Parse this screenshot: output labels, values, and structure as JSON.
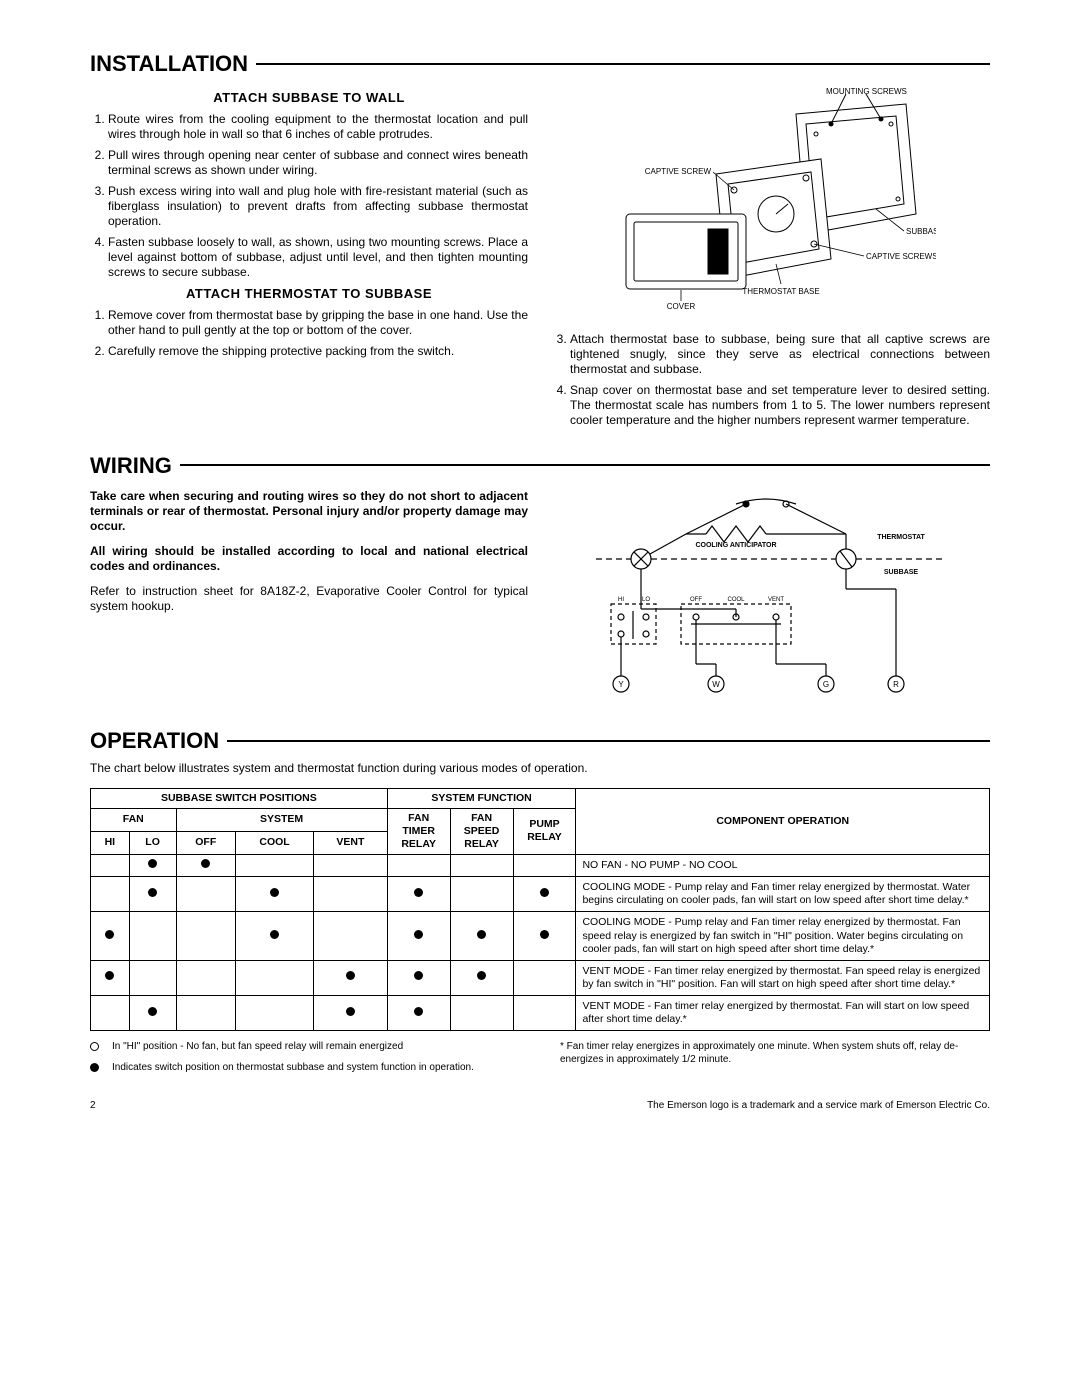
{
  "installation": {
    "title": "INSTALLATION",
    "sub1": "ATTACH SUBBASE TO WALL",
    "steps1": [
      "Route wires from the cooling equipment to the thermostat location and pull wires through hole in wall so that 6 inches of cable protrudes.",
      "Pull wires through opening near center of subbase and connect wires beneath terminal screws as shown under wiring.",
      "Push excess wiring into wall and plug hole with fire-resistant material (such as fiberglass insulation) to prevent drafts from affecting subbase thermostat operation.",
      "Fasten subbase loosely to wall, as shown, using two mounting screws. Place a level against bottom of subbase, adjust until level, and then tighten mounting screws to secure subbase."
    ],
    "sub2": "ATTACH THERMOSTAT TO SUBBASE",
    "steps2": [
      "Remove cover from thermostat base by gripping the base in one hand. Use the other hand to pull gently at the top or bottom of the cover.",
      "Carefully remove the shipping protective packing from the switch."
    ],
    "steps2b": [
      "Attach thermostat base to subbase, being sure that all captive screws are tightened snugly, since they serve as electrical connections between thermostat and subbase.",
      "Snap cover on thermostat base and set temperature lever to desired setting. The thermostat scale has numbers from 1 to 5. The lower numbers represent cooler temperature and the higher numbers represent warmer temperature."
    ],
    "diagram_labels": {
      "mounting_screws": "MOUNTING SCREWS",
      "captive_screw": "CAPTIVE SCREW",
      "subbase": "SUBBASE",
      "captive_screws": "CAPTIVE SCREWS",
      "thermostat_base": "THERMOSTAT BASE",
      "cover": "COVER"
    }
  },
  "wiring": {
    "title": "WIRING",
    "warn1": "Take care when securing and routing wires so they do not short to adjacent terminals or rear of thermostat. Personal injury and/or property damage may occur.",
    "warn2": "All wiring should be installed according to local and national electrical codes and ordinances.",
    "ref": "Refer to instruction sheet for 8A18Z-2, Evaporative Cooler Control for typical system hookup.",
    "diagram_labels": {
      "cooling_anticipator": "COOLING ANTICIPATOR",
      "thermostat": "THERMOSTAT",
      "subbase": "SUBBASE",
      "hi": "HI",
      "lo": "LO",
      "off": "OFF",
      "cool": "COOL",
      "vent": "VENT",
      "y": "Y",
      "w": "W",
      "g": "G",
      "r": "R"
    }
  },
  "operation": {
    "title": "OPERATION",
    "intro": "The chart below illustrates system and thermostat function during various modes of operation.",
    "headers": {
      "subbase_switch": "SUBBASE SWITCH POSITIONS",
      "system_function": "SYSTEM FUNCTION",
      "component_operation": "COMPONENT OPERATION",
      "fan": "FAN",
      "system": "SYSTEM",
      "hi": "HI",
      "lo": "LO",
      "off": "OFF",
      "cool": "COOL",
      "vent": "VENT",
      "fan_timer_relay": "FAN TIMER RELAY",
      "fan_speed_relay": "FAN SPEED RELAY",
      "pump_relay": "PUMP RELAY"
    },
    "rows": [
      {
        "hi": false,
        "lo": true,
        "off": true,
        "cool": false,
        "vent": false,
        "ftr": false,
        "fsr": false,
        "pr": false,
        "desc": "NO FAN - NO PUMP - NO COOL"
      },
      {
        "hi": false,
        "lo": true,
        "off": false,
        "cool": true,
        "vent": false,
        "ftr": true,
        "fsr": false,
        "pr": true,
        "desc": "COOLING MODE - Pump relay and Fan timer relay energized by thermostat. Water begins circulating on cooler pads, fan will start on low speed after short time delay.*"
      },
      {
        "hi": true,
        "lo": false,
        "off": false,
        "cool": true,
        "vent": false,
        "ftr": true,
        "fsr": true,
        "pr": true,
        "desc": "COOLING MODE - Pump relay and Fan timer relay energized by thermostat. Fan speed relay is energized by fan switch in \"HI\" position. Water begins circulating on cooler pads, fan will start on high speed after short time delay.*"
      },
      {
        "hi": true,
        "lo": false,
        "off": false,
        "cool": false,
        "vent": true,
        "ftr": true,
        "fsr": true,
        "pr": false,
        "desc": "VENT MODE - Fan timer relay energized by thermostat. Fan speed relay is energized by fan switch in \"HI\" position. Fan will start on high speed after short time delay.*"
      },
      {
        "hi": false,
        "lo": true,
        "off": false,
        "cool": false,
        "vent": true,
        "ftr": true,
        "fsr": false,
        "pr": false,
        "desc": "VENT MODE - Fan timer relay energized by thermostat. Fan will start on low speed after short time delay.*"
      }
    ],
    "notes": {
      "n1": "In \"HI\" position - No fan, but fan speed relay will remain energized",
      "n2": "Indicates switch position on thermostat subbase and system function in operation.",
      "n3": "* Fan timer relay energizes in approximately one minute. When system shuts off, relay de-energizes in approximately 1/2 minute."
    }
  },
  "footer": {
    "pagenum": "2",
    "tm": "The Emerson logo is a trademark and a service mark of Emerson Electric Co."
  }
}
